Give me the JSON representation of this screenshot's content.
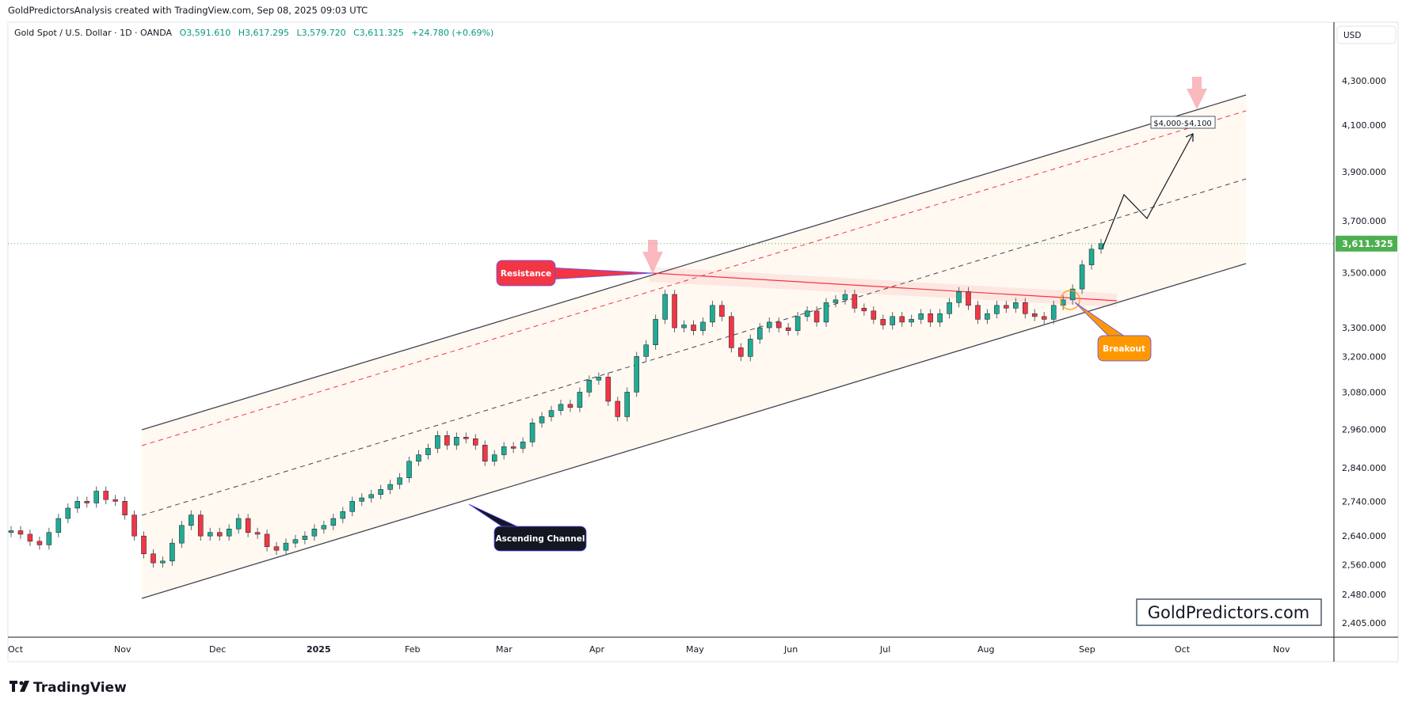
{
  "header": {
    "attribution": "GoldPredictorsAnalysis created with TradingView.com, Sep 08, 2025 09:03 UTC"
  },
  "legend": {
    "symbol": "Gold Spot / U.S. Dollar · 1D · OANDA",
    "open": "O3,591.610",
    "high": "H3,617.295",
    "low": "L3,579.720",
    "close": "C3,611.325",
    "change": "+24.780 (+0.69%)"
  },
  "price_axis": {
    "currency": "USD",
    "current_price_label": "3,611.325"
  },
  "annotations": {
    "resistance": "Resistance",
    "breakout": "Breakout",
    "ascending_channel": "Ascending Channel",
    "target": "$4,000-$4,100"
  },
  "watermark": "GoldPredictors.com",
  "footer": {
    "logo": "TradingView"
  },
  "colors": {
    "up": "#22ab94",
    "down": "#f23645",
    "current": "#4caf50",
    "breakout": "#ff9800",
    "resistance": "#f23645"
  },
  "chart_data": {
    "type": "candlestick",
    "title": "Gold Spot / U.S. Dollar · 1D · OANDA",
    "scale": "log",
    "ylim": [
      2405,
      4300
    ],
    "y_ticks": [
      "4,300.000",
      "4,100.000",
      "3,900.000",
      "3,700.000",
      "3,500.000",
      "3,300.000",
      "3,200.000",
      "3,080.000",
      "2,960.000",
      "2,840.000",
      "2,740.000",
      "2,640.000",
      "2,560.000",
      "2,480.000",
      "2,405.000"
    ],
    "y_tick_values": [
      4300,
      4100,
      3900,
      3700,
      3500,
      3300,
      3200,
      3080,
      2960,
      2840,
      2740,
      2640,
      2560,
      2480,
      2405
    ],
    "x_ticks": [
      "Oct",
      "Nov",
      "Dec",
      "2025",
      "Feb",
      "Mar",
      "Apr",
      "May",
      "Jun",
      "Jul",
      "Aug",
      "Sep",
      "Oct",
      "Nov"
    ],
    "current_price": 3611.325,
    "closes": [
      2655,
      2645,
      2625,
      2615,
      2650,
      2690,
      2720,
      2740,
      2735,
      2770,
      2745,
      2740,
      2700,
      2640,
      2590,
      2565,
      2570,
      2620,
      2670,
      2700,
      2640,
      2650,
      2640,
      2660,
      2690,
      2650,
      2645,
      2610,
      2600,
      2620,
      2630,
      2640,
      2660,
      2670,
      2690,
      2710,
      2740,
      2750,
      2760,
      2775,
      2790,
      2810,
      2860,
      2880,
      2900,
      2940,
      2910,
      2935,
      2930,
      2910,
      2860,
      2880,
      2905,
      2900,
      2920,
      2980,
      3000,
      3020,
      3040,
      3030,
      3080,
      3120,
      3130,
      3050,
      3000,
      3080,
      3200,
      3240,
      3330,
      3420,
      3300,
      3310,
      3290,
      3320,
      3380,
      3340,
      3230,
      3200,
      3260,
      3300,
      3320,
      3300,
      3290,
      3340,
      3360,
      3320,
      3390,
      3400,
      3420,
      3370,
      3360,
      3330,
      3310,
      3340,
      3320,
      3330,
      3350,
      3320,
      3350,
      3390,
      3430,
      3380,
      3330,
      3350,
      3380,
      3370,
      3390,
      3350,
      3340,
      3330,
      3380,
      3400,
      3440,
      3530,
      3590,
      3611.325
    ]
  }
}
